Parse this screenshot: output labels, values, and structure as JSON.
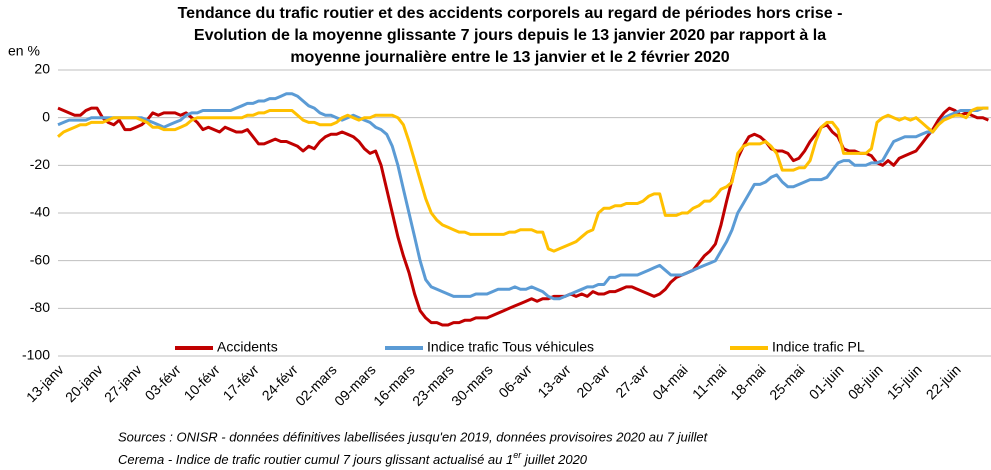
{
  "chart_data": {
    "type": "line",
    "title": [
      "Tendance du trafic routier et des accidents corporels au regard de périodes hors crise -",
      "Evolution de la moyenne glissante 7 jours depuis le 13 janvier 2020 par rapport à la",
      "moyenne journalière entre le 13 janvier et le 2 février 2020"
    ],
    "y_label": "en %",
    "categories": [
      "13-janv",
      null,
      null,
      null,
      null,
      null,
      null,
      "20-janv",
      null,
      null,
      null,
      null,
      null,
      null,
      "27-janv",
      null,
      null,
      null,
      null,
      null,
      null,
      "03-févr",
      null,
      null,
      null,
      null,
      null,
      null,
      "10-févr",
      null,
      null,
      null,
      null,
      null,
      null,
      "17-févr",
      null,
      null,
      null,
      null,
      null,
      null,
      "24-févr",
      null,
      null,
      null,
      null,
      null,
      null,
      "02-mars",
      null,
      null,
      null,
      null,
      null,
      null,
      "09-mars",
      null,
      null,
      null,
      null,
      null,
      null,
      "16-mars",
      null,
      null,
      null,
      null,
      null,
      null,
      "23-mars",
      null,
      null,
      null,
      null,
      null,
      null,
      "30-mars",
      null,
      null,
      null,
      null,
      null,
      null,
      "06-avr",
      null,
      null,
      null,
      null,
      null,
      null,
      "13-avr",
      null,
      null,
      null,
      null,
      null,
      null,
      "20-avr",
      null,
      null,
      null,
      null,
      null,
      null,
      "27-avr",
      null,
      null,
      null,
      null,
      null,
      null,
      "04-mai",
      null,
      null,
      null,
      null,
      null,
      null,
      "11-mai",
      null,
      null,
      null,
      null,
      null,
      null,
      "18-mai",
      null,
      null,
      null,
      null,
      null,
      null,
      "25-mai",
      null,
      null,
      null,
      null,
      null,
      null,
      "01-juin",
      null,
      null,
      null,
      null,
      null,
      null,
      "08-juin",
      null,
      null,
      null,
      null,
      null,
      null,
      "15-juin",
      null,
      null,
      null,
      null,
      null,
      null,
      "22-juin",
      null,
      null,
      null,
      null,
      null,
      null
    ],
    "series": [
      {
        "name": "Accidents",
        "color": "#c00000",
        "values": [
          4,
          3,
          2,
          1,
          1,
          3,
          4,
          4,
          0,
          -2,
          -3,
          -1,
          -5,
          -5,
          -4,
          -3,
          -1,
          2,
          1,
          2,
          2,
          2,
          1,
          2,
          0,
          -2,
          -5,
          -4,
          -5,
          -6,
          -4,
          -5,
          -6,
          -6,
          -5,
          -8,
          -11,
          -11,
          -10,
          -9,
          -10,
          -10,
          -11,
          -12,
          -14,
          -12,
          -13,
          -10,
          -8,
          -7,
          -7,
          -6,
          -7,
          -8,
          -10,
          -13,
          -15,
          -14,
          -20,
          -30,
          -40,
          -50,
          -58,
          -65,
          -74,
          -81,
          -84,
          -86,
          -86,
          -87,
          -87,
          -86,
          -86,
          -85,
          -85,
          -84,
          -84,
          -84,
          -83,
          -82,
          -81,
          -80,
          -79,
          -78,
          -77,
          -76,
          -77,
          -76,
          -76,
          -75,
          -75,
          -75,
          -74,
          -75,
          -74,
          -75,
          -73,
          -74,
          -74,
          -73,
          -73,
          -72,
          -71,
          -71,
          -72,
          -73,
          -74,
          -75,
          -74,
          -72,
          -69,
          -67,
          -66,
          -65,
          -64,
          -61,
          -58,
          -56,
          -53,
          -45,
          -35,
          -26,
          -17,
          -12,
          -8,
          -7,
          -8,
          -10,
          -13,
          -14,
          -14,
          -15,
          -18,
          -17,
          -14,
          -10,
          -7,
          -4,
          -3,
          -6,
          -8,
          -13,
          -14,
          -14,
          -15,
          -15,
          -16,
          -19,
          -20,
          -18,
          -20,
          -17,
          -16,
          -15,
          -14,
          -11,
          -8,
          -5,
          -1,
          2,
          4,
          3,
          1,
          2,
          1,
          0,
          0,
          -1
        ]
      },
      {
        "name": "Indice trafic Tous véhicules",
        "color": "#5b9bd5",
        "values": [
          -3,
          -2,
          -1,
          -1,
          -1,
          -1,
          0,
          0,
          0,
          0,
          0,
          0,
          0,
          0,
          0,
          0,
          -1,
          -2,
          -3,
          -4,
          -3,
          -2,
          -1,
          1,
          2,
          2,
          3,
          3,
          3,
          3,
          3,
          3,
          4,
          5,
          6,
          6,
          7,
          7,
          8,
          8,
          9,
          10,
          10,
          9,
          7,
          5,
          4,
          2,
          1,
          1,
          0,
          -1,
          0,
          1,
          0,
          -1,
          -2,
          -4,
          -5,
          -7,
          -12,
          -20,
          -30,
          -40,
          -50,
          -60,
          -68,
          -71,
          -72,
          -73,
          -74,
          -75,
          -75,
          -75,
          -75,
          -74,
          -74,
          -74,
          -73,
          -72,
          -72,
          -72,
          -71,
          -72,
          -72,
          -71,
          -72,
          -73,
          -75,
          -76,
          -76,
          -75,
          -74,
          -73,
          -72,
          -71,
          -71,
          -70,
          -70,
          -67,
          -67,
          -66,
          -66,
          -66,
          -66,
          -65,
          -64,
          -63,
          -62,
          -64,
          -66,
          -66,
          -66,
          -65,
          -64,
          -63,
          -62,
          -61,
          -60,
          -56,
          -52,
          -47,
          -40,
          -36,
          -32,
          -28,
          -28,
          -27,
          -25,
          -24,
          -27,
          -29,
          -29,
          -28,
          -27,
          -26,
          -26,
          -26,
          -25,
          -22,
          -19,
          -18,
          -18,
          -20,
          -20,
          -20,
          -19,
          -19,
          -18,
          -14,
          -10,
          -9,
          -8,
          -8,
          -8,
          -7,
          -6,
          -6,
          -3,
          0,
          1,
          2,
          3,
          3,
          3,
          3,
          4,
          4
        ]
      },
      {
        "name": "Indice trafic PL",
        "color": "#ffc000",
        "values": [
          -8,
          -6,
          -5,
          -4,
          -3,
          -3,
          -2,
          -2,
          -2,
          -1,
          0,
          0,
          0,
          0,
          0,
          -1,
          -2,
          -4,
          -4,
          -5,
          -5,
          -5,
          -4,
          -3,
          -1,
          0,
          0,
          0,
          0,
          0,
          0,
          0,
          0,
          0,
          1,
          1,
          2,
          2,
          3,
          3,
          3,
          3,
          3,
          1,
          -1,
          -2,
          -2,
          -3,
          -3,
          -3,
          -2,
          0,
          1,
          0,
          -1,
          0,
          0,
          1,
          1,
          1,
          1,
          0,
          -3,
          -10,
          -18,
          -26,
          -34,
          -40,
          -43,
          -45,
          -46,
          -47,
          -48,
          -48,
          -49,
          -49,
          -49,
          -49,
          -49,
          -49,
          -49,
          -48,
          -48,
          -47,
          -47,
          -47,
          -48,
          -48,
          -55,
          -56,
          -55,
          -54,
          -53,
          -52,
          -50,
          -48,
          -47,
          -40,
          -38,
          -38,
          -37,
          -37,
          -36,
          -36,
          -36,
          -35,
          -33,
          -32,
          -32,
          -41,
          -41,
          -41,
          -40,
          -40,
          -38,
          -37,
          -35,
          -35,
          -33,
          -30,
          -29,
          -27,
          -15,
          -12,
          -11,
          -11,
          -11,
          -10,
          -12,
          -15,
          -22,
          -22,
          -22,
          -21,
          -21,
          -18,
          -10,
          -4,
          -2,
          -2,
          -5,
          -15,
          -15,
          -15,
          -15,
          -15,
          -13,
          -2,
          0,
          1,
          0,
          -1,
          0,
          -1,
          0,
          -2,
          -4,
          -6,
          -3,
          -1,
          0,
          1,
          1,
          0,
          3,
          4,
          4,
          4
        ]
      }
    ],
    "ylim": [
      -100,
      20
    ],
    "yticks": [
      -100,
      -80,
      -60,
      -40,
      -20,
      0,
      20
    ],
    "grid": true,
    "legend": "bottom",
    "notes": [
      "Sources : ONISR - données définitives labellisées jusqu'en 2019, données provisoires 2020 au 7 juillet",
      {
        "before": "Cerema - Indice de trafic routier cumul 7 jours glissant actualisé au 1",
        "sup": "er",
        "after": " juillet 2020"
      }
    ]
  }
}
